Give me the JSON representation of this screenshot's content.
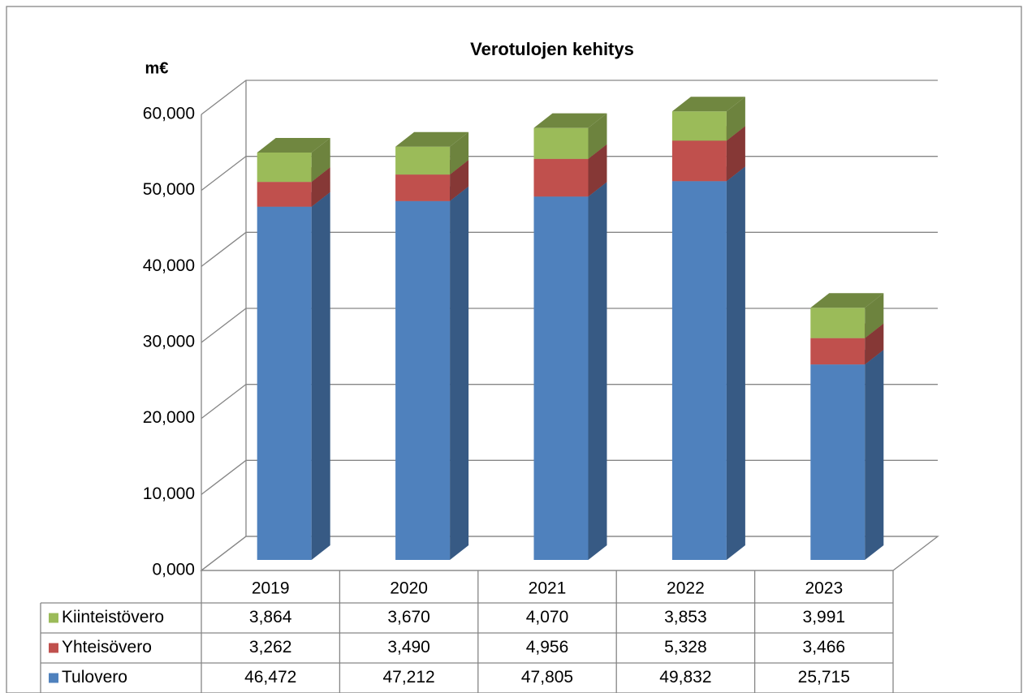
{
  "chart_data": {
    "type": "bar3d_stacked",
    "title": "Verotulojen kehitys",
    "ylabel": "m€",
    "categories": [
      "2019",
      "2020",
      "2021",
      "2022",
      "2023"
    ],
    "series": [
      {
        "name": "Tulovero",
        "color": "#4f81bd",
        "values": [
          46472,
          47212,
          47805,
          49832,
          25715
        ],
        "value_labels": [
          "46,472",
          "47,212",
          "47,805",
          "49,832",
          "25,715"
        ]
      },
      {
        "name": "Yhteisövero",
        "color": "#c0504d",
        "values": [
          3262,
          3490,
          4956,
          5328,
          3466
        ],
        "value_labels": [
          "3,262",
          "3,490",
          "4,956",
          "5,328",
          "3,466"
        ]
      },
      {
        "name": "Kiinteistövero",
        "color": "#9bbb59",
        "values": [
          3864,
          3670,
          4070,
          3853,
          3991
        ],
        "value_labels": [
          "3,864",
          "3,670",
          "4,070",
          "3,853",
          "3,991"
        ]
      }
    ],
    "ylim": [
      0,
      60000
    ],
    "yticks": [
      {
        "value": 0,
        "label": "0,000"
      },
      {
        "value": 10000,
        "label": "10,000"
      },
      {
        "value": 20000,
        "label": "20,000"
      },
      {
        "value": 30000,
        "label": "30,000"
      },
      {
        "value": 40000,
        "label": "40,000"
      },
      {
        "value": 50000,
        "label": "50,000"
      },
      {
        "value": 60000,
        "label": "60,000"
      }
    ],
    "grid": true
  }
}
